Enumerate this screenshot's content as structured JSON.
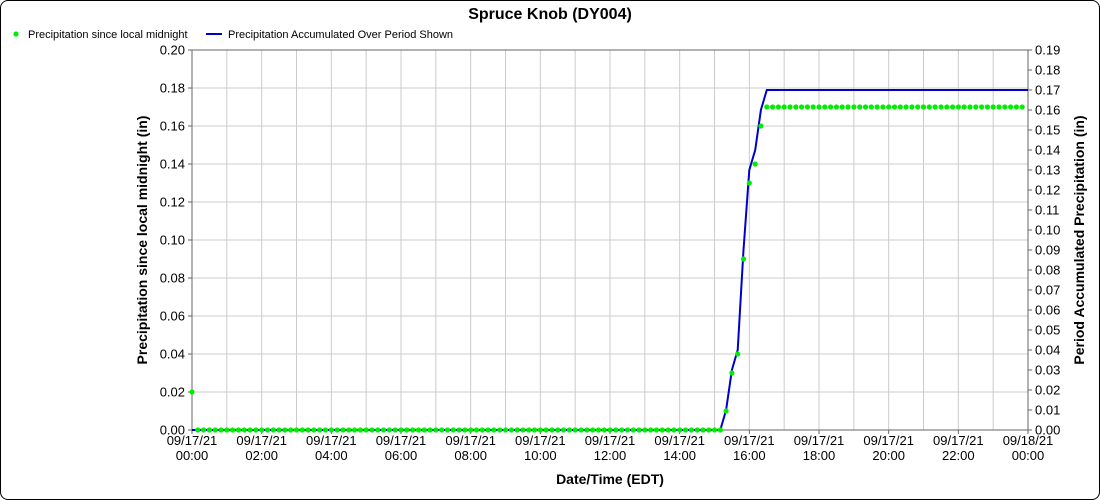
{
  "chart_data": {
    "type": "line",
    "title": "Spruce Knob (DY004)",
    "xlabel": "Date/Time (EDT)",
    "ylabel_left": "Precipitation since local midnight (in)",
    "ylabel_right": "Period Accumulated Precipitation (in)",
    "x_range_hours": [
      0,
      24
    ],
    "x_ticks": [
      {
        "h": 0,
        "date": "09/17/21",
        "time": "00:00"
      },
      {
        "h": 2,
        "date": "09/17/21",
        "time": "02:00"
      },
      {
        "h": 4,
        "date": "09/17/21",
        "time": "04:00"
      },
      {
        "h": 6,
        "date": "09/17/21",
        "time": "06:00"
      },
      {
        "h": 8,
        "date": "09/17/21",
        "time": "08:00"
      },
      {
        "h": 10,
        "date": "09/17/21",
        "time": "10:00"
      },
      {
        "h": 12,
        "date": "09/17/21",
        "time": "12:00"
      },
      {
        "h": 14,
        "date": "09/17/21",
        "time": "14:00"
      },
      {
        "h": 16,
        "date": "09/17/21",
        "time": "16:00"
      },
      {
        "h": 18,
        "date": "09/17/21",
        "time": "18:00"
      },
      {
        "h": 20,
        "date": "09/17/21",
        "time": "20:00"
      },
      {
        "h": 22,
        "date": "09/17/21",
        "time": "22:00"
      },
      {
        "h": 24,
        "date": "09/18/21",
        "time": "00:00"
      }
    ],
    "ylim_left": [
      0,
      0.2
    ],
    "ylim_right": [
      0,
      0.19
    ],
    "y_ticks_left": [
      "0.00",
      "0.02",
      "0.04",
      "0.06",
      "0.08",
      "0.10",
      "0.12",
      "0.14",
      "0.16",
      "0.18",
      "0.20"
    ],
    "y_ticks_right": [
      "0.00",
      "0.01",
      "0.02",
      "0.03",
      "0.04",
      "0.05",
      "0.06",
      "0.07",
      "0.08",
      "0.09",
      "0.10",
      "0.11",
      "0.12",
      "0.13",
      "0.14",
      "0.15",
      "0.16",
      "0.17",
      "0.18",
      "0.19"
    ],
    "grid": true,
    "legend_position": "top-left",
    "series": [
      {
        "name": "Precipitation since local midnight",
        "kind": "points",
        "axis": "left",
        "color": "#00ee00",
        "sample_interval_hours": 0.1667,
        "base_value": 0.0,
        "first_point": {
          "h": 0,
          "value": 0.02
        },
        "rise_points": [
          {
            "h": 15.333,
            "value": 0.01
          },
          {
            "h": 15.5,
            "value": 0.03
          },
          {
            "h": 15.667,
            "value": 0.04
          },
          {
            "h": 15.833,
            "value": 0.09
          },
          {
            "h": 16.0,
            "value": 0.13
          },
          {
            "h": 16.167,
            "value": 0.14
          },
          {
            "h": 16.333,
            "value": 0.16
          }
        ],
        "plateau": {
          "from_h": 16.5,
          "to_h": 24,
          "value": 0.17
        }
      },
      {
        "name": "Precipitation Accumulated Over Period Shown",
        "kind": "line",
        "axis": "right",
        "color": "#0000cc",
        "points": [
          {
            "h": 0,
            "value": 0.0
          },
          {
            "h": 15.167,
            "value": 0.0
          },
          {
            "h": 15.333,
            "value": 0.01
          },
          {
            "h": 15.5,
            "value": 0.03
          },
          {
            "h": 15.667,
            "value": 0.04
          },
          {
            "h": 15.833,
            "value": 0.09
          },
          {
            "h": 16.0,
            "value": 0.13
          },
          {
            "h": 16.167,
            "value": 0.14
          },
          {
            "h": 16.333,
            "value": 0.16
          },
          {
            "h": 16.5,
            "value": 0.17
          },
          {
            "h": 24,
            "value": 0.17
          }
        ]
      }
    ]
  }
}
